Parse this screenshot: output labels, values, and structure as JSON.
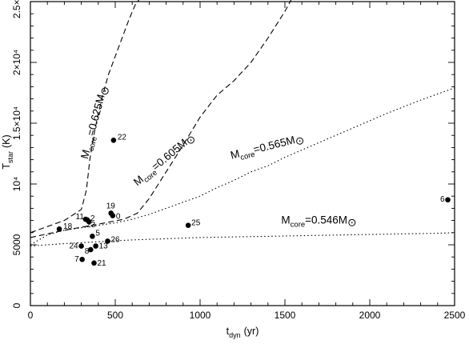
{
  "chart_data": {
    "type": "scatter",
    "title": "",
    "xlabel": {
      "main": "t",
      "sub": "dyn",
      "unit": "(yr)"
    },
    "ylabel": {
      "main": "T",
      "sub": "star",
      "unit": "(K)"
    },
    "xlim": [
      0,
      2500
    ],
    "ylim": [
      0,
      25000
    ],
    "x_ticks": [
      {
        "value": 0,
        "label": "0"
      },
      {
        "value": 500,
        "label": "500"
      },
      {
        "value": 1000,
        "label": "1000"
      },
      {
        "value": 1500,
        "label": "1500"
      },
      {
        "value": 2000,
        "label": "2000"
      },
      {
        "value": 2500,
        "label": "2500"
      }
    ],
    "y_ticks": [
      {
        "value": 0,
        "label": "0"
      },
      {
        "value": 5000,
        "label": "5000"
      },
      {
        "value": 10000,
        "label": "10⁴"
      },
      {
        "value": 15000,
        "label": "1.5×10⁴"
      },
      {
        "value": 20000,
        "label": "2×10⁴"
      },
      {
        "value": 25000,
        "label": "2.5×10⁴"
      }
    ],
    "x_minor_step": 100,
    "y_minor_step": 1000,
    "points": [
      {
        "label": "0",
        "x": 485,
        "y": 7400
      },
      {
        "label": "2",
        "x": 335,
        "y": 7050
      },
      {
        "label": "5",
        "x": 365,
        "y": 5700
      },
      {
        "label": "6",
        "x": 2460,
        "y": 8700
      },
      {
        "label": "7",
        "x": 305,
        "y": 3800
      },
      {
        "label": "8",
        "x": 355,
        "y": 4600
      },
      {
        "label": "11",
        "x": 325,
        "y": 7100
      },
      {
        "label": "13",
        "x": 385,
        "y": 4900
      },
      {
        "label": "18",
        "x": 170,
        "y": 6300
      },
      {
        "label": "19",
        "x": 475,
        "y": 7600
      },
      {
        "label": "21",
        "x": 375,
        "y": 3500
      },
      {
        "label": "22",
        "x": 490,
        "y": 13600
      },
      {
        "label": "23",
        "x": 345,
        "y": 6900
      },
      {
        "label": "24",
        "x": 300,
        "y": 4900
      },
      {
        "label": "25",
        "x": 930,
        "y": 6600
      },
      {
        "label": "26",
        "x": 455,
        "y": 5300
      }
    ],
    "tracks": [
      {
        "name": "M_core=0.625M_sun",
        "text": "M",
        "sub": "core",
        "value": "=0.625M",
        "sun": "⊙",
        "style": "dashed",
        "x": [
          0,
          100,
          200,
          300,
          330,
          350,
          380,
          420,
          460,
          500,
          540,
          580,
          620,
          660
        ],
        "y": [
          6000,
          6500,
          7000,
          7900,
          9500,
          12000,
          14500,
          17000,
          19000,
          20500,
          22000,
          23500,
          24800,
          25500
        ]
      },
      {
        "name": "M_core=0.605M_sun",
        "text": "M",
        "sub": "core",
        "value": "=0.605M",
        "sun": "⊙",
        "style": "dashed",
        "x": [
          0,
          200,
          400,
          550,
          630,
          700,
          800,
          900,
          1000,
          1100,
          1200,
          1300,
          1400,
          1500,
          1550
        ],
        "y": [
          5600,
          6200,
          6700,
          7100,
          7600,
          8800,
          11000,
          13200,
          15500,
          17300,
          18500,
          20000,
          22000,
          24200,
          25500
        ]
      },
      {
        "name": "M_core=0.565M_sun",
        "text": "M",
        "sub": "core",
        "value": "=0.565M",
        "sun": "⊙",
        "style": "dotted",
        "x": [
          0,
          100,
          200,
          300,
          400,
          500,
          600,
          700,
          800,
          900,
          1000,
          1100,
          1200,
          1300,
          1400,
          1500,
          1700,
          1900,
          2100,
          2300,
          2500
        ],
        "y": [
          5000,
          5800,
          6200,
          6400,
          6600,
          6800,
          7100,
          7500,
          8000,
          8500,
          9000,
          9700,
          10300,
          11000,
          11500,
          12200,
          13400,
          14600,
          15800,
          16900,
          17900
        ]
      },
      {
        "name": "M_core=0.546M_sun",
        "text": "M",
        "sub": "core",
        "value": "=0.546M",
        "sun": "⊙",
        "style": "dotted",
        "x": [
          0,
          200,
          400,
          600,
          800,
          1000,
          1200,
          1400,
          1600,
          1800,
          2000,
          2200,
          2400,
          2500
        ],
        "y": [
          4900,
          5100,
          5250,
          5400,
          5500,
          5600,
          5650,
          5700,
          5750,
          5800,
          5850,
          5900,
          5950,
          6000
        ]
      }
    ],
    "grid": false,
    "legend": "none"
  }
}
